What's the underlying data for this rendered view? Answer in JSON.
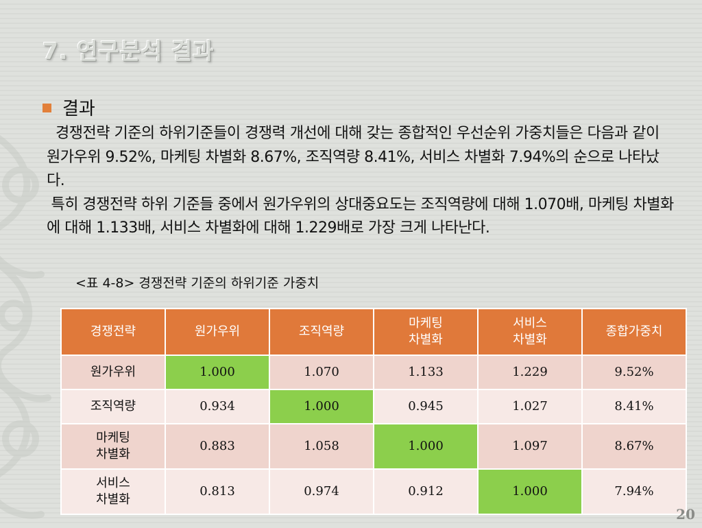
{
  "slide": {
    "title": "7. 연구분석 결과",
    "bullet": "결과",
    "paragraph1": "  경쟁전략 기준의 하위기준들이 경쟁력 개선에 대해 갖는 종합적인 우선순위 가중치들은 다음과 같이 원가우위 9.52%, 마케팅 차별화 8.67%, 조직역량 8.41%, 서비스 차별화 7.94%의 순으로 나타났다.",
    "paragraph2": " 특히 경쟁전략 하위 기준들 중에서 원가우위의 상대중요도는 조직역량에 대해 1.070배, 마케팅 차별화에 대해 1.133배, 서비스 차별화에 대해 1.229배로 가장 크게 나타난다.",
    "caption": "<표 4-8> 경쟁전략 기준의 하위기준 가중치",
    "page_number": "20"
  },
  "colors": {
    "header_bg": "#e0793a",
    "row_odd": "#efd4cd",
    "row_even": "#f7e9e6",
    "diagonal": "#8ccf4c",
    "bullet": "#e2803a"
  },
  "chart_data": {
    "type": "table",
    "columns": [
      "경쟁전략",
      "원가우위",
      "조직역량",
      "마케팅\n차별화",
      "서비스\n차별화",
      "종합가중치"
    ],
    "rows": [
      [
        "원가우위",
        "1.000",
        "1.070",
        "1.133",
        "1.229",
        "9.52%"
      ],
      [
        "조직역량",
        "0.934",
        "1.000",
        "0.945",
        "1.027",
        "8.41%"
      ],
      [
        "마케팅\n차별화",
        "0.883",
        "1.058",
        "1.000",
        "1.097",
        "8.67%"
      ],
      [
        "서비스\n차별화",
        "0.813",
        "0.974",
        "0.912",
        "1.000",
        "7.94%"
      ]
    ]
  }
}
